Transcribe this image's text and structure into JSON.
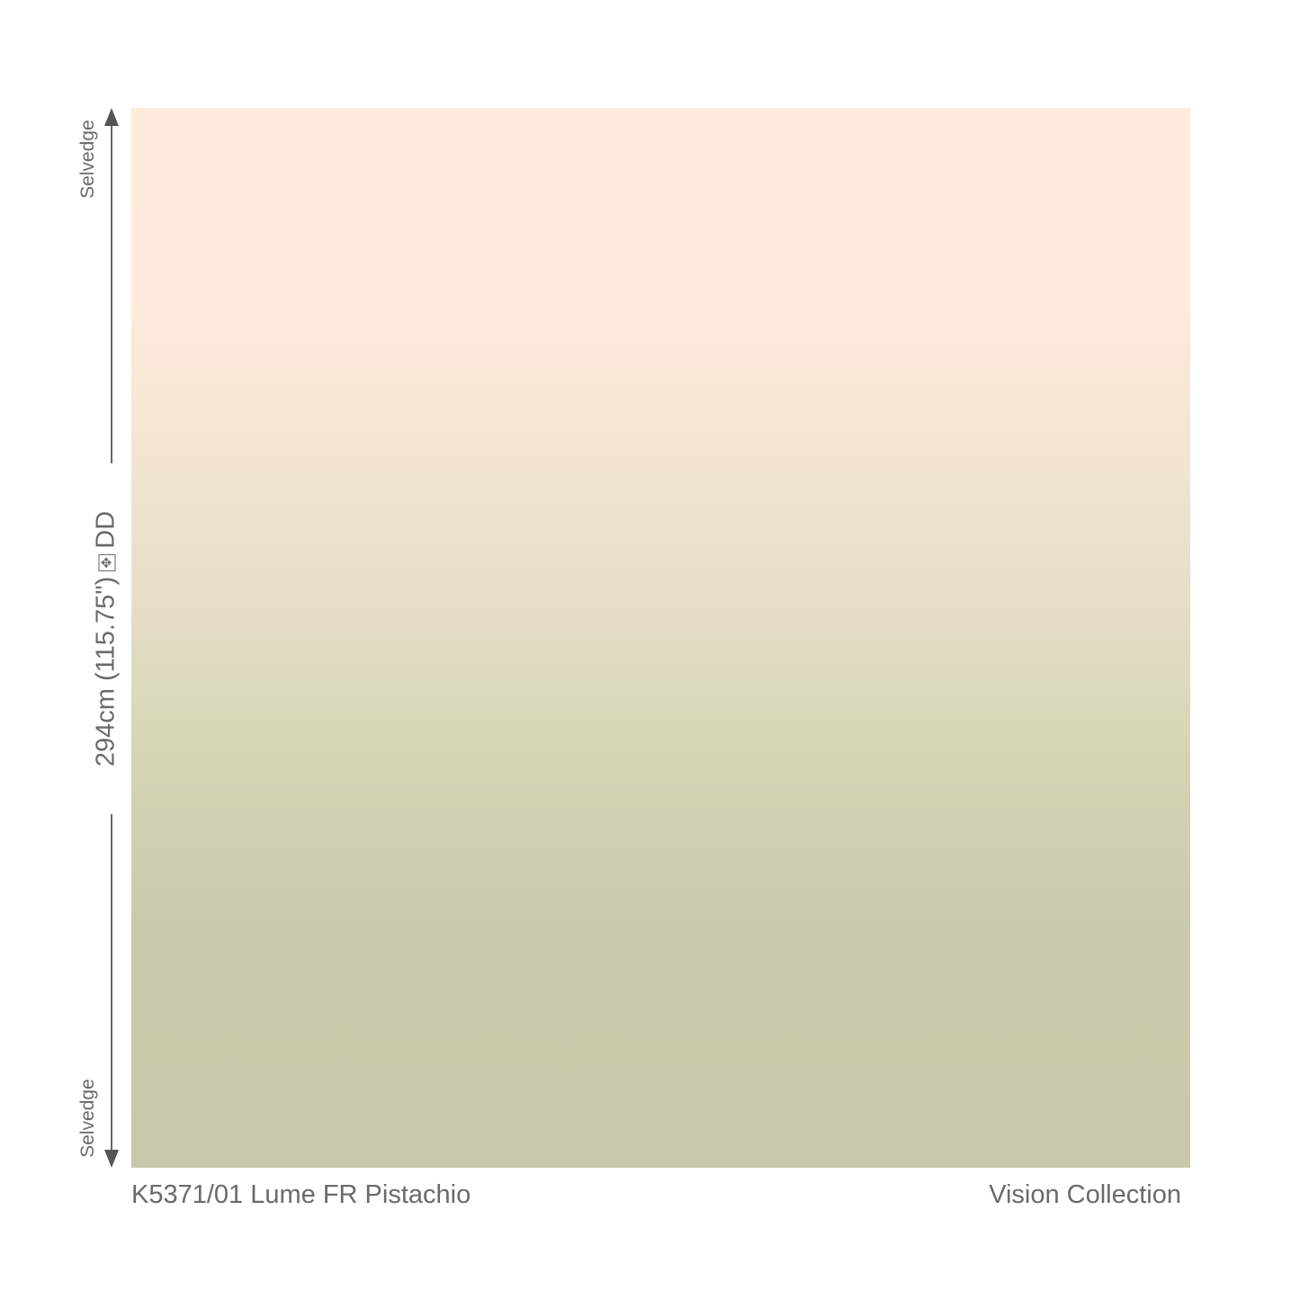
{
  "swatch": {
    "colors": {
      "top": "#fdebdb",
      "bottom": "#c7c9aa"
    }
  },
  "dimension": {
    "top_label": "Selvedge",
    "bottom_label": "Selvedge",
    "width_text": "294cm (115.75\")",
    "icon": "four-way-arrow-box-icon",
    "suffix": "DD"
  },
  "footer": {
    "product": "K5371/01 Lume FR Pistachio",
    "collection": "Vision Collection"
  }
}
